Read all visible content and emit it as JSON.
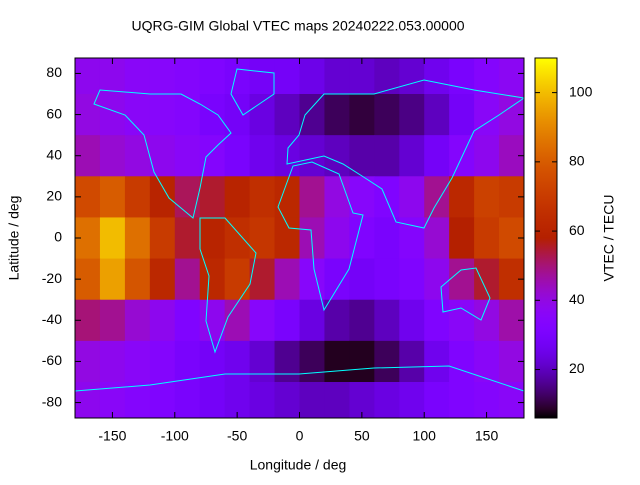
{
  "chart_data": {
    "type": "heatmap",
    "title": "UQRG-GIM Global VTEC maps 20240222.053.00000",
    "xlabel": "Longitude / deg",
    "ylabel": "Latitude / deg",
    "cblabel": "VTEC / TECU",
    "x_edges": [
      -180,
      -160,
      -140,
      -120,
      -100,
      -80,
      -60,
      -40,
      -20,
      0,
      20,
      40,
      60,
      80,
      100,
      120,
      140,
      160,
      180
    ],
    "y_edges": [
      90,
      70,
      50,
      30,
      10,
      -10,
      -30,
      -50,
      -70,
      -90
    ],
    "z": [
      [
        38,
        38,
        36,
        35,
        34,
        32,
        30,
        28,
        28,
        25,
        22,
        22,
        20,
        22,
        26,
        30,
        34,
        37
      ],
      [
        40,
        38,
        36,
        35,
        34,
        30,
        28,
        24,
        20,
        16,
        12,
        10,
        12,
        15,
        20,
        28,
        36,
        40
      ],
      [
        45,
        42,
        40,
        38,
        36,
        34,
        30,
        26,
        24,
        22,
        20,
        18,
        18,
        22,
        28,
        34,
        38,
        44
      ],
      [
        75,
        80,
        70,
        60,
        52,
        55,
        60,
        65,
        62,
        48,
        40,
        35,
        32,
        38,
        48,
        62,
        72,
        70
      ],
      [
        85,
        100,
        85,
        70,
        55,
        60,
        65,
        68,
        62,
        45,
        38,
        32,
        30,
        34,
        42,
        58,
        70,
        75
      ],
      [
        80,
        95,
        78,
        62,
        48,
        62,
        70,
        55,
        45,
        35,
        30,
        28,
        30,
        32,
        38,
        48,
        55,
        65
      ],
      [
        50,
        48,
        42,
        38,
        32,
        38,
        45,
        35,
        30,
        24,
        18,
        16,
        20,
        26,
        32,
        36,
        40,
        46
      ],
      [
        40,
        38,
        36,
        34,
        30,
        28,
        26,
        22,
        16,
        12,
        8,
        8,
        12,
        18,
        26,
        32,
        36,
        40
      ],
      [
        38,
        36,
        34,
        32,
        30,
        28,
        26,
        24,
        22,
        20,
        20,
        22,
        24,
        26,
        30,
        32,
        34,
        36
      ]
    ],
    "xlim": [
      -180,
      180
    ],
    "ylim": [
      -87.5,
      87.5
    ],
    "xticks": [
      -150,
      -100,
      -50,
      0,
      50,
      100,
      150
    ],
    "yticks": [
      -80,
      -60,
      -40,
      -20,
      0,
      20,
      40,
      60,
      80
    ],
    "cblim": [
      6,
      110
    ],
    "cbticks": [
      20,
      40,
      60,
      80,
      100
    ],
    "palette": "gnuplot",
    "coastline_color": "#00ffff"
  }
}
